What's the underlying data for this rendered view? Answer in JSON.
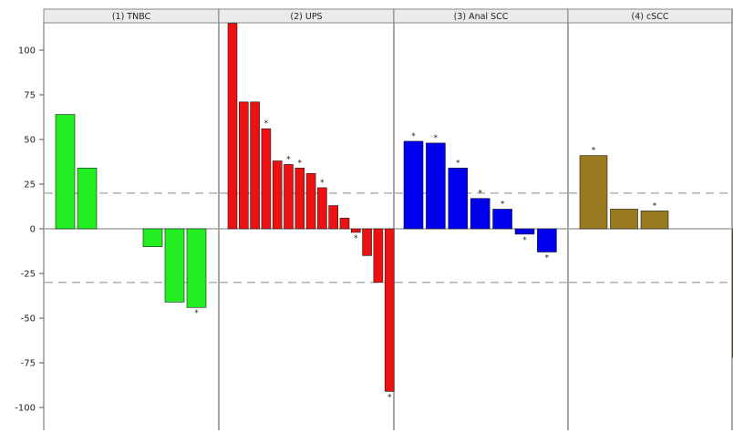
{
  "chart_data": {
    "type": "bar",
    "panels": [
      {
        "title": "(1) TNBC",
        "color": "#22ee22",
        "values": [
          64,
          34,
          null,
          null,
          -10,
          -41,
          -44
        ],
        "stars": [
          false,
          false,
          false,
          false,
          false,
          false,
          true
        ]
      },
      {
        "title": "(2) UPS",
        "color": "#ee1111",
        "values": [
          115,
          71,
          71,
          56,
          38,
          36,
          34,
          31,
          23,
          13,
          6,
          -2,
          -15,
          -30,
          -91
        ],
        "stars": [
          false,
          false,
          false,
          true,
          false,
          true,
          true,
          false,
          true,
          false,
          false,
          true,
          false,
          false,
          true
        ]
      },
      {
        "title": "(3) Anal SCC",
        "color": "#0000ee",
        "values": [
          49,
          48,
          34,
          17,
          11,
          -3,
          -13
        ],
        "stars": [
          true,
          true,
          true,
          true,
          true,
          true,
          true
        ]
      },
      {
        "title": "(4) cSCC",
        "color": "#9a7a20",
        "values": [
          41,
          11,
          10,
          null,
          null,
          -72
        ],
        "stars": [
          true,
          false,
          true,
          false,
          false,
          true
        ]
      }
    ],
    "y_ticks": [
      "100",
      "75",
      "50",
      "25",
      "0",
      "-25",
      "-50",
      "-75",
      "-100"
    ],
    "star_symbol": "*",
    "ylim": [
      -113,
      113
    ],
    "reference_lines": [
      20,
      -30
    ],
    "reference_line_color": "#aaaaaa"
  }
}
